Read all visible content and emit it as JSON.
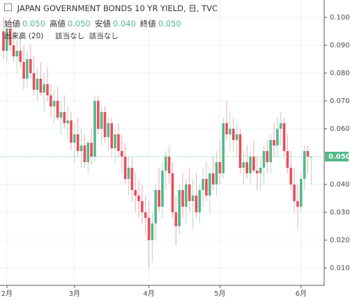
{
  "chart_data": {
    "type": "candlestick",
    "title": "JAPAN GOVERNMENT BONDS 10 YR YIELD, 日, TVC",
    "ohlc_legend": [
      {
        "label": "始値",
        "value": "0.050"
      },
      {
        "label": "高値",
        "value": "0.050"
      },
      {
        "label": "安値",
        "value": "0.040"
      },
      {
        "label": "終値",
        "value": "0.050"
      }
    ],
    "indicator": {
      "name": "出来高 (20)",
      "values": [
        "該当なし",
        "該当なし"
      ]
    },
    "up_color": "#53b987",
    "down_color": "#eb4d5c",
    "open": [
      0.095,
      0.088,
      0.096,
      0.09,
      0.086,
      0.088,
      0.084,
      0.078,
      0.085,
      0.08,
      0.074,
      0.078,
      0.073,
      0.076,
      0.072,
      0.068,
      0.07,
      0.064,
      0.066,
      0.062,
      0.063,
      0.055,
      0.058,
      0.052,
      0.054,
      0.048,
      0.055,
      0.05,
      0.07,
      0.06,
      0.066,
      0.057,
      0.062,
      0.053,
      0.058,
      0.052,
      0.05,
      0.042,
      0.046,
      0.038,
      0.036,
      0.034,
      0.03,
      0.028,
      0.02,
      0.026,
      0.038,
      0.032,
      0.045,
      0.05,
      0.044,
      0.03,
      0.025,
      0.038,
      0.032,
      0.04,
      0.034,
      0.036,
      0.03,
      0.038,
      0.042,
      0.036,
      0.044,
      0.04,
      0.048,
      0.044,
      0.062,
      0.058,
      0.06,
      0.056,
      0.058,
      0.046,
      0.048,
      0.044,
      0.05,
      0.045,
      0.044,
      0.046,
      0.052,
      0.048,
      0.056,
      0.054,
      0.06,
      0.062,
      0.052,
      0.046,
      0.04,
      0.034,
      0.032,
      0.042,
      0.052,
      0.05
    ],
    "high": [
      0.1,
      0.098,
      0.1,
      0.095,
      0.092,
      0.094,
      0.09,
      0.088,
      0.09,
      0.086,
      0.082,
      0.084,
      0.08,
      0.082,
      0.076,
      0.074,
      0.075,
      0.07,
      0.072,
      0.068,
      0.066,
      0.062,
      0.064,
      0.06,
      0.058,
      0.056,
      0.06,
      0.072,
      0.072,
      0.068,
      0.068,
      0.064,
      0.064,
      0.06,
      0.062,
      0.058,
      0.055,
      0.05,
      0.05,
      0.044,
      0.042,
      0.04,
      0.036,
      0.034,
      0.03,
      0.04,
      0.046,
      0.048,
      0.052,
      0.054,
      0.048,
      0.036,
      0.04,
      0.044,
      0.042,
      0.046,
      0.042,
      0.044,
      0.04,
      0.046,
      0.048,
      0.046,
      0.05,
      0.052,
      0.056,
      0.064,
      0.07,
      0.066,
      0.064,
      0.062,
      0.06,
      0.052,
      0.054,
      0.052,
      0.056,
      0.05,
      0.05,
      0.054,
      0.056,
      0.058,
      0.062,
      0.064,
      0.066,
      0.064,
      0.058,
      0.052,
      0.046,
      0.04,
      0.044,
      0.054,
      0.054,
      0.05
    ],
    "low": [
      0.085,
      0.084,
      0.088,
      0.084,
      0.08,
      0.082,
      0.074,
      0.075,
      0.078,
      0.072,
      0.07,
      0.072,
      0.066,
      0.07,
      0.064,
      0.062,
      0.063,
      0.058,
      0.06,
      0.056,
      0.052,
      0.048,
      0.05,
      0.046,
      0.046,
      0.044,
      0.047,
      0.048,
      0.058,
      0.054,
      0.055,
      0.052,
      0.05,
      0.048,
      0.05,
      0.044,
      0.04,
      0.036,
      0.034,
      0.03,
      0.028,
      0.026,
      0.022,
      0.01,
      0.012,
      0.02,
      0.03,
      0.028,
      0.038,
      0.04,
      0.028,
      0.018,
      0.022,
      0.028,
      0.026,
      0.03,
      0.024,
      0.028,
      0.026,
      0.032,
      0.034,
      0.03,
      0.038,
      0.036,
      0.04,
      0.042,
      0.056,
      0.052,
      0.052,
      0.05,
      0.044,
      0.04,
      0.042,
      0.04,
      0.044,
      0.038,
      0.038,
      0.04,
      0.044,
      0.044,
      0.05,
      0.05,
      0.054,
      0.05,
      0.044,
      0.038,
      0.03,
      0.024,
      0.03,
      0.038,
      0.044,
      0.04
    ],
    "close": [
      0.088,
      0.096,
      0.09,
      0.086,
      0.088,
      0.084,
      0.078,
      0.085,
      0.08,
      0.074,
      0.078,
      0.073,
      0.076,
      0.072,
      0.068,
      0.07,
      0.064,
      0.066,
      0.062,
      0.063,
      0.055,
      0.058,
      0.052,
      0.054,
      0.048,
      0.055,
      0.05,
      0.07,
      0.06,
      0.066,
      0.057,
      0.062,
      0.053,
      0.058,
      0.052,
      0.05,
      0.042,
      0.046,
      0.038,
      0.036,
      0.034,
      0.03,
      0.028,
      0.02,
      0.026,
      0.038,
      0.032,
      0.045,
      0.05,
      0.044,
      0.03,
      0.025,
      0.038,
      0.032,
      0.04,
      0.034,
      0.036,
      0.03,
      0.038,
      0.042,
      0.036,
      0.044,
      0.04,
      0.048,
      0.044,
      0.062,
      0.058,
      0.06,
      0.056,
      0.058,
      0.046,
      0.048,
      0.044,
      0.05,
      0.045,
      0.044,
      0.046,
      0.052,
      0.048,
      0.056,
      0.054,
      0.06,
      0.062,
      0.052,
      0.046,
      0.04,
      0.034,
      0.032,
      0.042,
      0.052,
      0.05,
      0.05
    ],
    "xticks": [
      {
        "value": 1,
        "label": "2月"
      },
      {
        "value": 21,
        "label": "3月"
      },
      {
        "value": 43,
        "label": "4月"
      },
      {
        "value": 64,
        "label": "5月"
      },
      {
        "value": 88,
        "label": "6月"
      }
    ],
    "ylim": [
      0.00375,
      0.10625
    ],
    "yticks": [
      {
        "value": 0.1,
        "label": "0.100"
      },
      {
        "value": 0.09,
        "label": "0.090"
      },
      {
        "value": 0.08,
        "label": "0.080"
      },
      {
        "value": 0.07,
        "label": "0.070"
      },
      {
        "value": 0.06,
        "label": "0.060"
      },
      {
        "value": 0.04,
        "label": "0.040"
      },
      {
        "value": 0.03,
        "label": "0.030"
      },
      {
        "value": 0.02,
        "label": "0.020"
      },
      {
        "value": 0.01,
        "label": "0.010"
      }
    ],
    "price_line": {
      "value": 0.05,
      "label": "0.050"
    },
    "grid": true
  }
}
